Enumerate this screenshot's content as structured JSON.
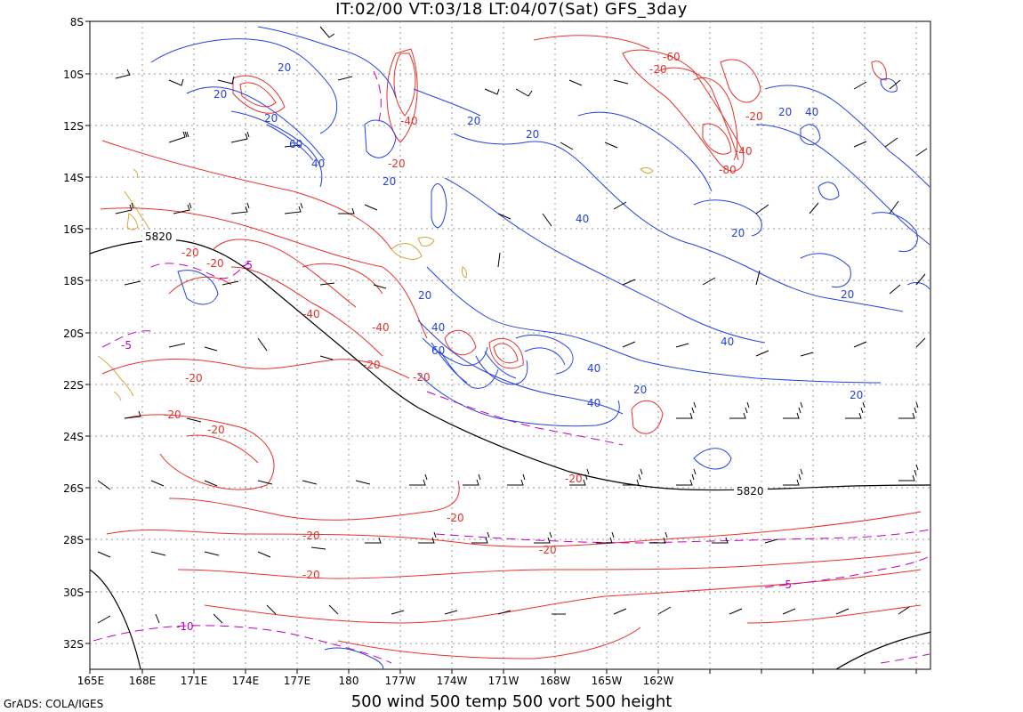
{
  "header": {
    "title": "IT:02/00 VT:03/18 LT:04/07(Sat) GFS_3day"
  },
  "footer": {
    "caption": "500 wind 500 temp 500 vort 500 height",
    "credit": "GrADS: COLA/IGES"
  },
  "axes": {
    "lat_labels": [
      "8S",
      "10S",
      "12S",
      "14S",
      "16S",
      "18S",
      "20S",
      "22S",
      "24S",
      "26S",
      "28S",
      "30S",
      "32S"
    ],
    "lon_labels": [
      "165E",
      "168E",
      "171E",
      "174E",
      "177E",
      "180",
      "177W",
      "174W",
      "171W",
      "168W",
      "165W",
      "162W"
    ]
  },
  "contour_labels": {
    "height": [
      "5820",
      "5820"
    ],
    "temperature": [
      "-20",
      "-40",
      "-20",
      "-40",
      "-20",
      "-20",
      "-20",
      "-20",
      "-20",
      "-20",
      "-20",
      "-20",
      "-20",
      "-20",
      "-20",
      "-40",
      "-60",
      "-20",
      "-20",
      "-40",
      "-80",
      "-5",
      "-5",
      "-5",
      "-10"
    ],
    "vorticity": [
      "20",
      "20",
      "20",
      "60",
      "40",
      "20",
      "20",
      "40",
      "20",
      "40",
      "20",
      "40",
      "60",
      "40",
      "40",
      "20",
      "20",
      "20",
      "40",
      "20",
      "20"
    ]
  },
  "colors": {
    "height": "#000000",
    "temperature": "#e8302a",
    "vorticity": "#2442e0",
    "temp_dashed": "#c000c0",
    "coastline": "#d4a63a",
    "grid": "#999999"
  }
}
